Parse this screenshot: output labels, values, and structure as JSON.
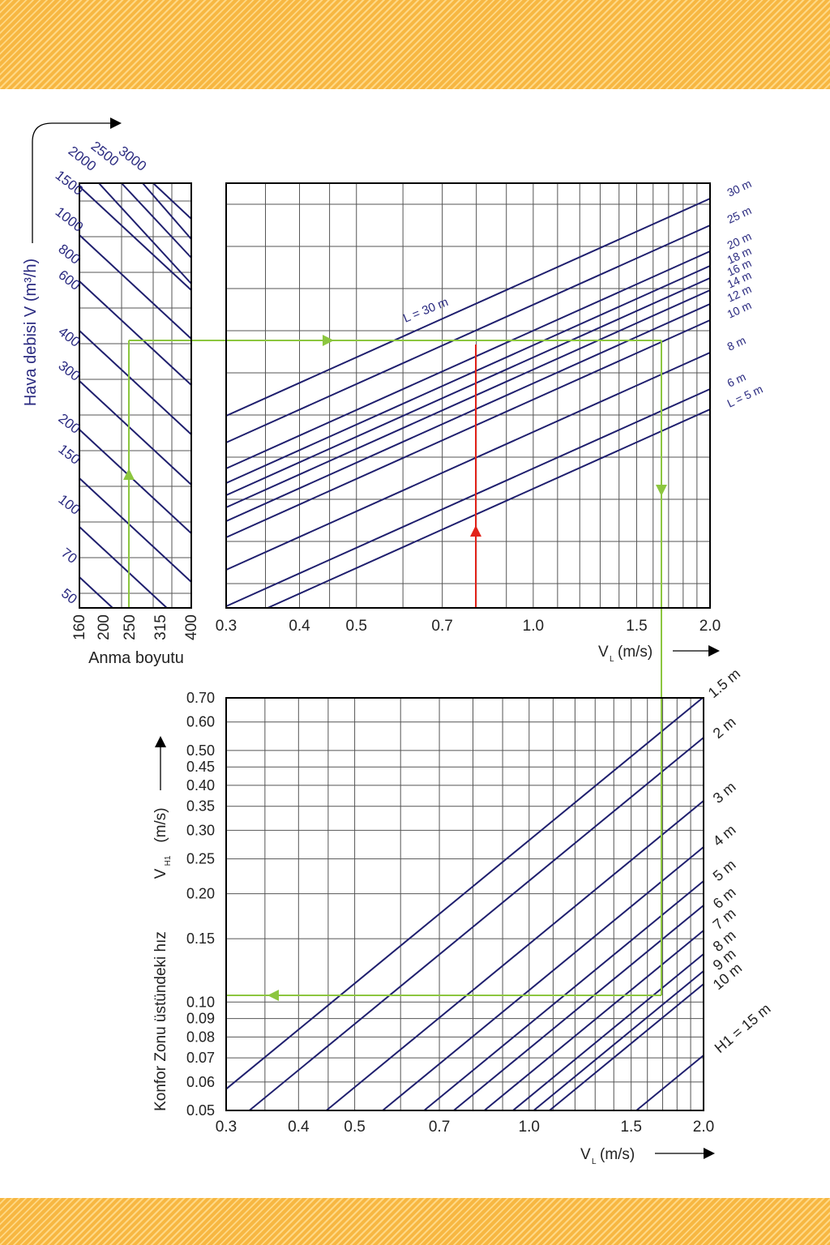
{
  "colors": {
    "stripe": "#f7b742",
    "curve": "#1f1f6e",
    "grid": "#555555",
    "frame": "#000000",
    "path_green": "#8cc63f",
    "path_red": "#e2231a",
    "text": "#222222",
    "label_blue": "#2a2a80"
  },
  "chart_data": [
    {
      "type": "line",
      "panel": "duct-size",
      "ylabel": "Hava debisi V (m³/h)",
      "xlabel": "Anma boyutu",
      "x_ticks": [
        "160",
        "200",
        "250",
        "315",
        "400"
      ],
      "y_ticks": [
        "50",
        "70",
        "100",
        "150",
        "200",
        "300",
        "400",
        "600",
        "800",
        "1000",
        "1500"
      ],
      "top_ticks": [
        "2000",
        "2500",
        "3000"
      ],
      "scale": "log",
      "ylim": [
        50,
        3000
      ]
    },
    {
      "type": "line",
      "panel": "throw-length",
      "x_ticks": [
        "0.3",
        "0.4",
        "0.5",
        "0.7",
        "1.0",
        "1.5",
        "2.0"
      ],
      "xlabel_main": "V",
      "xlabel_sub": "L",
      "xlabel_unit": "(m/s)",
      "xlim": [
        0.3,
        2.0
      ],
      "x_scale": "log",
      "series": [
        {
          "name": "L = 5 m"
        },
        {
          "name": "6 m"
        },
        {
          "name": "8 m"
        },
        {
          "name": "10 m"
        },
        {
          "name": "12 m"
        },
        {
          "name": "14 m"
        },
        {
          "name": "16 m"
        },
        {
          "name": "18 m"
        },
        {
          "name": "20 m"
        },
        {
          "name": "25 m"
        },
        {
          "name": "30 m"
        }
      ],
      "annotation": "L = 30 m"
    },
    {
      "type": "line",
      "panel": "comfort-zone",
      "x_ticks": [
        "0.3",
        "0.4",
        "0.5",
        "0.7",
        "1.0",
        "1.5",
        "2.0"
      ],
      "xlim": [
        0.3,
        2.0
      ],
      "x_scale": "log",
      "y_scale": "log",
      "ylim": [
        0.05,
        0.7
      ],
      "y_ticks": [
        "0.05",
        "0.06",
        "0.07",
        "0.08",
        "0.09",
        "0.10",
        "0.15",
        "0.20",
        "0.25",
        "0.30",
        "0.35",
        "0.40",
        "0.45",
        "0.50",
        "0.60",
        "0.70"
      ],
      "xlabel_main": "V",
      "xlabel_sub": "L",
      "xlabel_unit": "(m/s)",
      "ylabel_main": "Konfor Zonu üstündeki hız",
      "ylabel_v": "V",
      "ylabel_sub": "H1",
      "ylabel_unit": "(m/s)",
      "series": [
        {
          "name": "1.5 m"
        },
        {
          "name": "2 m"
        },
        {
          "name": "3 m"
        },
        {
          "name": "4 m"
        },
        {
          "name": "5 m"
        },
        {
          "name": "6 m"
        },
        {
          "name": "7 m"
        },
        {
          "name": "8 m"
        },
        {
          "name": "9 m"
        },
        {
          "name": "10 m"
        },
        {
          "name": "H1 = 15 m"
        }
      ]
    }
  ]
}
